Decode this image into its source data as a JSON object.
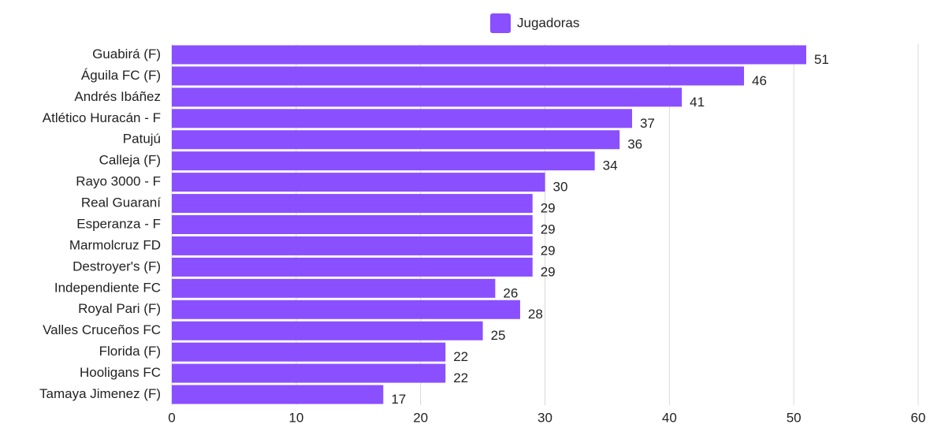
{
  "chart_data": {
    "type": "bar",
    "orientation": "horizontal",
    "categories": [
      "Guabirá (F)",
      "Águila FC (F)",
      "Andrés Ibáñez",
      "Atlético Huracán - F",
      "Patujú",
      "Calleja (F)",
      "Rayo 3000 - F",
      "Real Guaraní",
      "Esperanza - F",
      "Marmolcruz FD",
      "Destroyer's (F)",
      "Independiente FC",
      "Royal Pari (F)",
      "Valles Cruceños FC",
      "Florida (F)",
      "Hooligans FC",
      "Tamaya Jimenez (F)"
    ],
    "series": [
      {
        "name": "Jugadoras",
        "color": "#8a4fff",
        "values": [
          51,
          46,
          41,
          37,
          36,
          34,
          30,
          29,
          29,
          29,
          29,
          26,
          28,
          25,
          22,
          22,
          17
        ]
      }
    ],
    "xlim": [
      0,
      60
    ],
    "xticks": [
      0,
      10,
      20,
      30,
      40,
      50,
      60
    ],
    "grid": true,
    "legend": "top"
  }
}
